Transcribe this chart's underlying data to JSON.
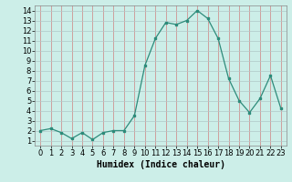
{
  "x": [
    0,
    1,
    2,
    3,
    4,
    5,
    6,
    7,
    8,
    9,
    10,
    11,
    12,
    13,
    14,
    15,
    16,
    17,
    18,
    19,
    20,
    21,
    22,
    23
  ],
  "y": [
    2,
    2.2,
    1.8,
    1.2,
    1.8,
    1.1,
    1.8,
    2.0,
    2.0,
    3.5,
    8.5,
    11.2,
    12.8,
    12.6,
    13.0,
    14.0,
    13.2,
    11.2,
    7.2,
    5.0,
    3.8,
    5.2,
    7.5,
    4.2
  ],
  "line_color": "#2d8b7a",
  "marker": "s",
  "marker_size": 2,
  "bg_color": "#cceee8",
  "grid_color_x": "#d08080",
  "grid_color_y": "#b0c8c8",
  "xlabel": "Humidex (Indice chaleur)",
  "ylim": [
    0.5,
    14.5
  ],
  "xlim": [
    -0.5,
    23.5
  ],
  "yticks": [
    1,
    2,
    3,
    4,
    5,
    6,
    7,
    8,
    9,
    10,
    11,
    12,
    13,
    14
  ],
  "xticks": [
    0,
    1,
    2,
    3,
    4,
    5,
    6,
    7,
    8,
    9,
    10,
    11,
    12,
    13,
    14,
    15,
    16,
    17,
    18,
    19,
    20,
    21,
    22,
    23
  ],
  "axis_fontsize": 7,
  "tick_fontsize": 6,
  "spine_color": "#888888"
}
